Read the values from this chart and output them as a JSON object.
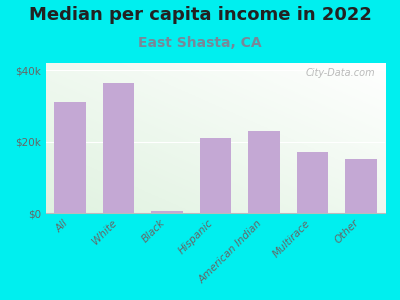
{
  "title": "Median per capita income in 2022",
  "subtitle": "East Shasta, CA",
  "categories": [
    "All",
    "White",
    "Black",
    "Hispanic",
    "American Indian",
    "Multirace",
    "Other"
  ],
  "values": [
    31000,
    36500,
    500,
    21000,
    23000,
    17000,
    15000
  ],
  "bar_color": "#c4a8d4",
  "background_color": "#00efef",
  "title_fontsize": 13,
  "title_color": "#222222",
  "subtitle_fontsize": 10,
  "subtitle_color": "#778899",
  "tick_color": "#666666",
  "tick_fontsize": 7.5,
  "ylim": [
    0,
    42000
  ],
  "yticks": [
    0,
    20000,
    40000
  ],
  "ytick_labels": [
    "$0",
    "$20k",
    "$40k"
  ],
  "watermark": "City-Data.com",
  "watermark_color": "#aaaaaa"
}
